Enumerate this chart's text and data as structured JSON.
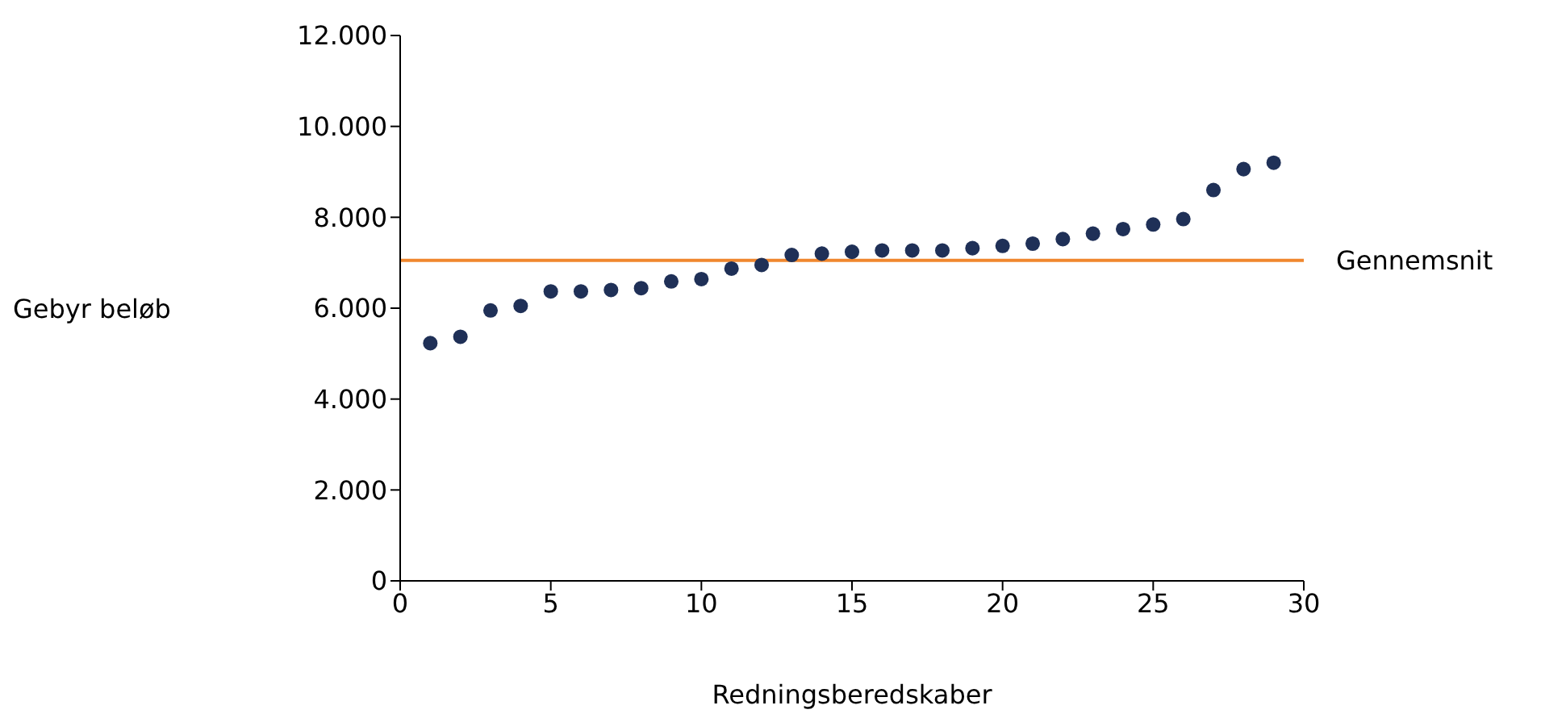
{
  "chart_data": {
    "type": "scatter",
    "xlabel": "Redningsberedskaber",
    "ylabel": "Gebyr beløb",
    "x": [
      1,
      2,
      3,
      4,
      5,
      6,
      7,
      8,
      9,
      10,
      11,
      12,
      13,
      14,
      15,
      16,
      17,
      18,
      19,
      20,
      21,
      22,
      23,
      24,
      25,
      26,
      27,
      28,
      29
    ],
    "series": [
      {
        "color": "#1f3057",
        "values": [
          5230,
          5370,
          5950,
          6050,
          6370,
          6370,
          6400,
          6440,
          6590,
          6640,
          6870,
          6950,
          7170,
          7200,
          7240,
          7270,
          7270,
          7270,
          7320,
          7370,
          7420,
          7520,
          7640,
          7740,
          7840,
          7960,
          8600,
          9060,
          9200
        ]
      }
    ],
    "xlim": [
      0,
      30
    ],
    "xticks": [
      0,
      5,
      10,
      15,
      20,
      25,
      30
    ],
    "ylim": [
      0,
      12000
    ],
    "yticks": [
      0,
      {
        "value": 2000,
        "label": "2.000"
      },
      {
        "value": 4000,
        "label": "4.000"
      },
      {
        "value": 6000,
        "label": "6.000"
      },
      {
        "value": 8000,
        "label": "8.000"
      },
      {
        "value": 10000,
        "label": "10.000"
      },
      {
        "value": 12000,
        "label": "12.000"
      }
    ],
    "ref_lines": [
      {
        "axis": "y",
        "value": 7050,
        "label": "Gennemsnit",
        "color": "#f0872e"
      }
    ],
    "grid": false,
    "legend": false,
    "marker": "circle"
  }
}
